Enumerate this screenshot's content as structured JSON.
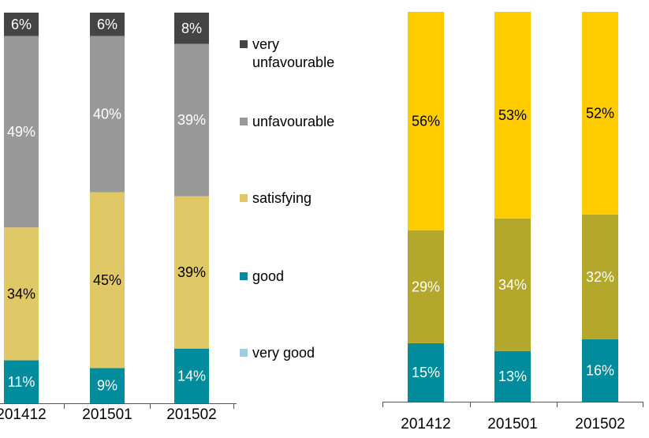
{
  "chart_data": [
    {
      "type": "bar",
      "stacked": true,
      "percent_stacked": true,
      "categories": [
        "201412",
        "201501",
        "201502"
      ],
      "series": [
        {
          "name": "very good",
          "color": "#9dcde1",
          "values": [
            0,
            0,
            0
          ],
          "labels": [
            "",
            "",
            ""
          ]
        },
        {
          "name": "good",
          "color": "#008c9c",
          "values": [
            11,
            9,
            14
          ],
          "labels": [
            "11%",
            "9%",
            "14%"
          ]
        },
        {
          "name": "satisfying",
          "color": "#e1c867",
          "values": [
            34,
            45,
            39
          ],
          "labels": [
            "34%",
            "45%",
            "39%"
          ]
        },
        {
          "name": "unfavourable",
          "color": "#999999",
          "values": [
            49,
            40,
            39
          ],
          "labels": [
            "49%",
            "40%",
            "39%"
          ]
        },
        {
          "name": "very unfavourable",
          "color": "#444444",
          "values": [
            6,
            6,
            8
          ],
          "labels": [
            "6%",
            "6%",
            "8%"
          ]
        }
      ],
      "label_colors": [
        "#ffffff",
        "#ffffff",
        "#000000",
        "#ffffff",
        "#ffffff"
      ],
      "legend": {
        "position": "right",
        "items": [
          {
            "lines": [
              "very",
              "unfavourable"
            ],
            "color": "#444444"
          },
          {
            "lines": [
              "unfavourable"
            ],
            "color": "#999999"
          },
          {
            "lines": [
              "satisfying"
            ],
            "color": "#e1c867"
          },
          {
            "lines": [
              "good"
            ],
            "color": "#008c9c"
          },
          {
            "lines": [
              "very good"
            ],
            "color": "#9dcde1"
          }
        ]
      }
    },
    {
      "type": "bar",
      "stacked": true,
      "percent_stacked": true,
      "categories": [
        "201412",
        "201501",
        "201502"
      ],
      "series": [
        {
          "name": "",
          "color": "#008c9c",
          "values": [
            15,
            13,
            16
          ],
          "labels": [
            "15%",
            "13%",
            "16%"
          ]
        },
        {
          "name": "",
          "color": "#b4a82c",
          "values": [
            29,
            34,
            32
          ],
          "labels": [
            "29%",
            "34%",
            "32%"
          ]
        },
        {
          "name": "",
          "color": "#ffcc00",
          "values": [
            56,
            53,
            52
          ],
          "labels": [
            "56%",
            "53%",
            "52%"
          ]
        }
      ],
      "label_colors": [
        "#ffffff",
        "#ffffff",
        "#000000"
      ]
    }
  ]
}
